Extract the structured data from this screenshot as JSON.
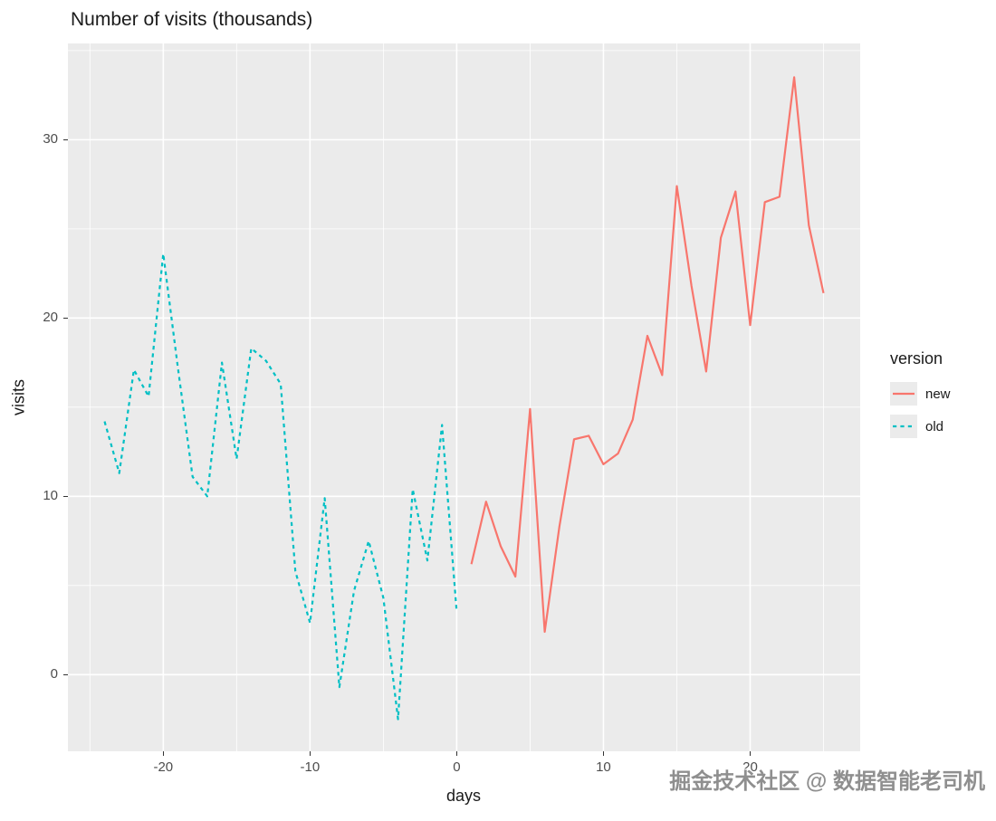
{
  "title": "Number of visits (thousands)",
  "watermark": "掘金技术社区 @ 数据智能老司机",
  "colors": {
    "new_series": "#F8766D",
    "old_series": "#00BFC4",
    "panel_background": "#EBEBEB",
    "gridline": "#FFFFFF",
    "tick_label": "#4D4D4D",
    "text": "#1A1A1A",
    "watermark": "#8F8F8F"
  },
  "legend": {
    "title": "version",
    "entries": [
      {
        "label": "new",
        "color": "#F8766D",
        "dash": false
      },
      {
        "label": "old",
        "color": "#00BFC4",
        "dash": true
      }
    ]
  },
  "chart_data": {
    "type": "line",
    "title": "Number of visits (thousands)",
    "xlabel": "days",
    "ylabel": "visits",
    "xlim": [
      -26.5,
      27.5
    ],
    "ylim": [
      -4.3,
      35.4
    ],
    "x_major_ticks": [
      -20,
      -10,
      0,
      10,
      20
    ],
    "y_major_ticks": [
      0,
      10,
      20,
      30
    ],
    "x_minor_ticks": [
      -25,
      -15,
      -5,
      5,
      15,
      25
    ],
    "y_minor_ticks": [
      5,
      15,
      25,
      35
    ],
    "grid": true,
    "legend_position": "right",
    "series": [
      {
        "name": "old",
        "style": "dashed",
        "color": "#00BFC4",
        "x": [
          -24,
          -23,
          -22,
          -21,
          -20,
          -19,
          -18,
          -17,
          -16,
          -15,
          -14,
          -13,
          -12,
          -11,
          -10,
          -9,
          -8,
          -7,
          -6,
          -5,
          -4,
          -3,
          -2,
          -1,
          0
        ],
        "y": [
          14.2,
          11.3,
          17.1,
          15.6,
          23.6,
          17.2,
          11.1,
          10.0,
          17.5,
          12.1,
          18.3,
          17.6,
          16.3,
          5.8,
          2.9,
          9.9,
          -0.7,
          4.7,
          7.5,
          4.3,
          -2.5,
          10.4,
          6.4,
          14.0,
          3.5
        ]
      },
      {
        "name": "new",
        "style": "solid",
        "color": "#F8766D",
        "x": [
          1,
          2,
          3,
          4,
          5,
          6,
          7,
          8,
          9,
          10,
          11,
          12,
          13,
          14,
          15,
          16,
          17,
          18,
          19,
          20,
          21,
          22,
          23,
          24,
          25
        ],
        "y": [
          6.2,
          9.7,
          7.2,
          5.5,
          14.9,
          2.4,
          8.3,
          13.2,
          13.4,
          11.8,
          12.4,
          14.3,
          19.0,
          16.8,
          27.4,
          21.8,
          17.0,
          24.5,
          27.1,
          19.6,
          26.5,
          26.8,
          33.5,
          25.2,
          21.4
        ]
      }
    ]
  }
}
